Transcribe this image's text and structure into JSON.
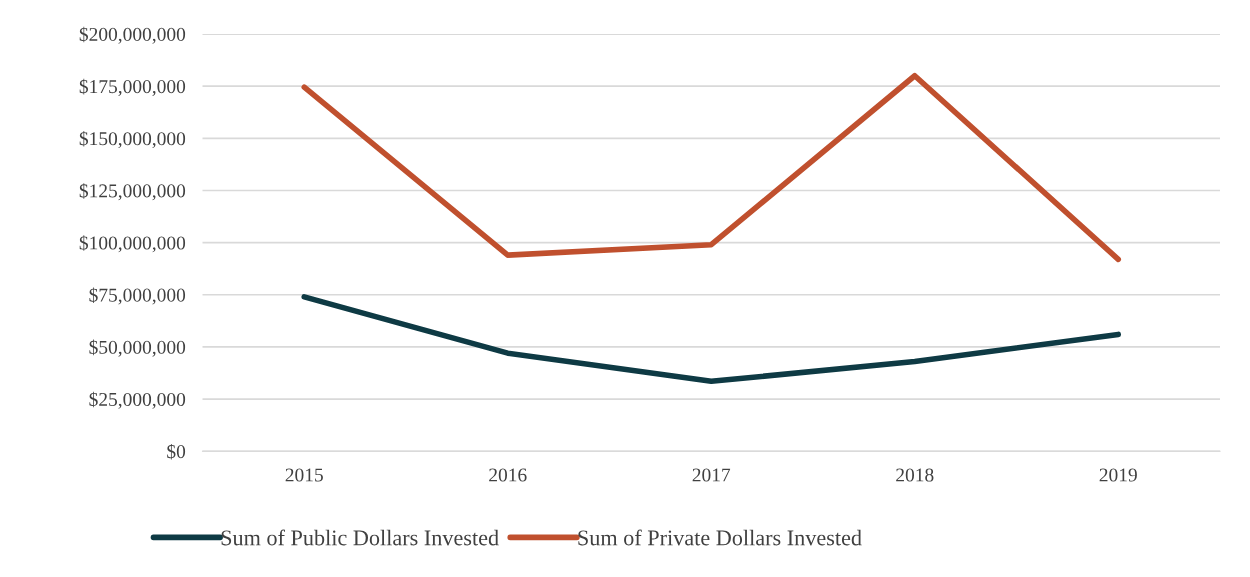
{
  "chart_data": {
    "type": "line",
    "categories": [
      "2015",
      "2016",
      "2017",
      "2018",
      "2019"
    ],
    "series": [
      {
        "name": "Sum of Public Dollars Invested",
        "color": "#0e3a44",
        "values": [
          74000000,
          47000000,
          33500000,
          43000000,
          56000000
        ]
      },
      {
        "name": "Sum of Private Dollars Invested",
        "color": "#c0502e",
        "values": [
          174500000,
          94000000,
          99000000,
          180000000,
          92000000
        ]
      }
    ],
    "ylim": [
      0,
      200000000
    ],
    "yticks": [
      {
        "value": 0,
        "label": "$0"
      },
      {
        "value": 25000000,
        "label": "$25,000,000"
      },
      {
        "value": 50000000,
        "label": "$50,000,000"
      },
      {
        "value": 75000000,
        "label": "$75,000,000"
      },
      {
        "value": 100000000,
        "label": "$100,000,000"
      },
      {
        "value": 125000000,
        "label": "$125,000,000"
      },
      {
        "value": 150000000,
        "label": "$150,000,000"
      },
      {
        "value": 175000000,
        "label": "$175,000,000"
      },
      {
        "value": 200000000,
        "label": "$200,000,000"
      }
    ],
    "grid": "y",
    "legend": "bottom",
    "marker": "none",
    "line_style": "solid"
  }
}
